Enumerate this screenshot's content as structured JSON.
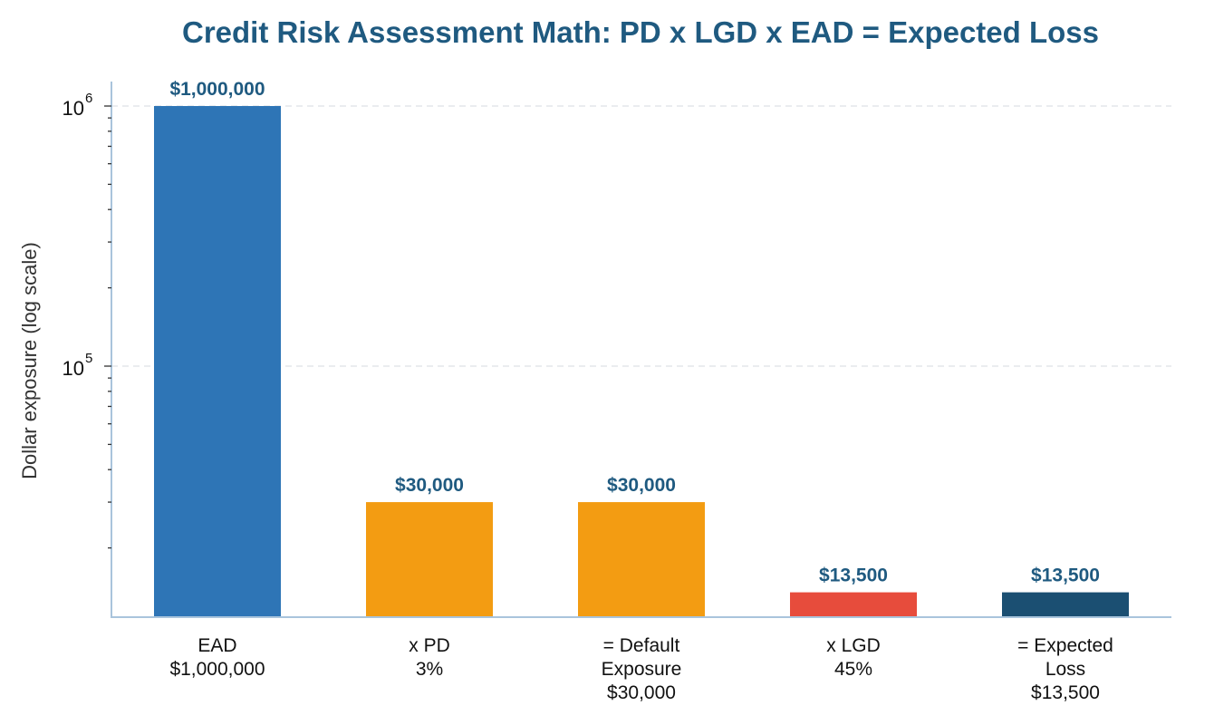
{
  "chart_data": {
    "type": "bar",
    "title": "Credit Risk Assessment Math: PD x LGD x EAD = Expected Loss",
    "xlabel": "",
    "ylabel": "Dollar exposure (log scale)",
    "yscale": "log",
    "ylim": [
      12000,
      1200000
    ],
    "grid": "y-dashed",
    "legend": "none",
    "yticks": [
      {
        "value": 100000,
        "base": "10",
        "exp": "5"
      },
      {
        "value": 1000000,
        "base": "10",
        "exp": "6"
      }
    ],
    "categories": [
      [
        "EAD",
        "$1,000,000"
      ],
      [
        "x PD",
        "3%"
      ],
      [
        "= Default",
        "Exposure",
        "$30,000"
      ],
      [
        "x LGD",
        "45%"
      ],
      [
        "= Expected",
        "Loss",
        "$13,500"
      ]
    ],
    "values": [
      1000000,
      30000,
      30000,
      13500,
      13500
    ],
    "data_labels": [
      "$1,000,000",
      "$30,000",
      "$30,000",
      "$13,500",
      "$13,500"
    ],
    "colors": [
      "#2e75b6",
      "#f39c12",
      "#f39c12",
      "#e74c3c",
      "#1b4f72"
    ]
  }
}
